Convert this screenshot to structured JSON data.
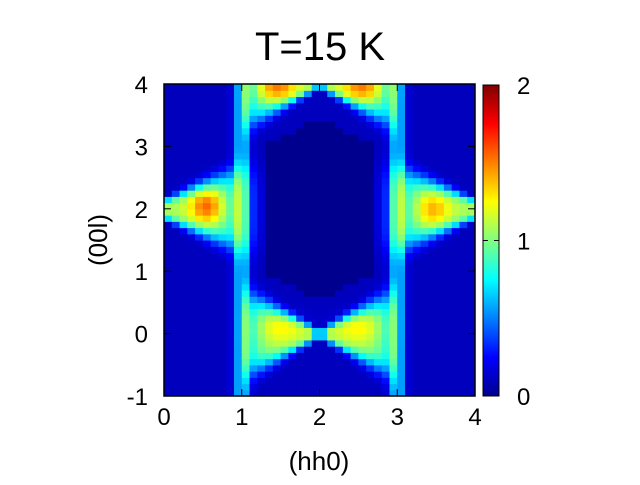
{
  "chart_data": {
    "type": "heatmap",
    "title": "T=15 K",
    "xlabel": "(hh0)",
    "ylabel": "(00l)",
    "xlim": [
      0,
      4
    ],
    "ylim": [
      -1,
      4
    ],
    "x_ticks": [
      0,
      1,
      2,
      3,
      4
    ],
    "y_ticks": [
      -1,
      0,
      1,
      2,
      3,
      4
    ],
    "colorbar": {
      "min": 0,
      "max": 2,
      "ticks": [
        0,
        1,
        2
      ],
      "colormap": "jet",
      "colors": [
        "#00008f",
        "#0000ff",
        "#0080ff",
        "#00ffff",
        "#80ff80",
        "#ffff00",
        "#ff8000",
        "#ff0000",
        "#800000"
      ]
    },
    "grid": false,
    "pixel_step": 0.1,
    "features": [
      {
        "description": "vertical rod",
        "h": 1,
        "l_range": [
          -1,
          4
        ],
        "intensity": 0.65
      },
      {
        "description": "vertical rod",
        "h": 3,
        "l_range": [
          -1,
          4
        ],
        "intensity": 0.65
      },
      {
        "description": "bowtie lobe",
        "h": 0.5,
        "l": 2,
        "intensity": 1.35
      },
      {
        "description": "bowtie lobe",
        "h": 3.5,
        "l": 2,
        "intensity": 1.25
      },
      {
        "description": "bowtie lobe",
        "h": 1.5,
        "l": 0,
        "intensity": 1.15
      },
      {
        "description": "bowtie lobe",
        "h": 2.5,
        "l": 0,
        "intensity": 1.15
      },
      {
        "description": "peak",
        "h": 1.5,
        "l": 4,
        "intensity": 1.45
      },
      {
        "description": "peak",
        "h": 2.5,
        "l": 4,
        "intensity": 1.45
      },
      {
        "description": "peak",
        "h": 0.5,
        "l": 2,
        "intensity": 1.55
      }
    ]
  }
}
